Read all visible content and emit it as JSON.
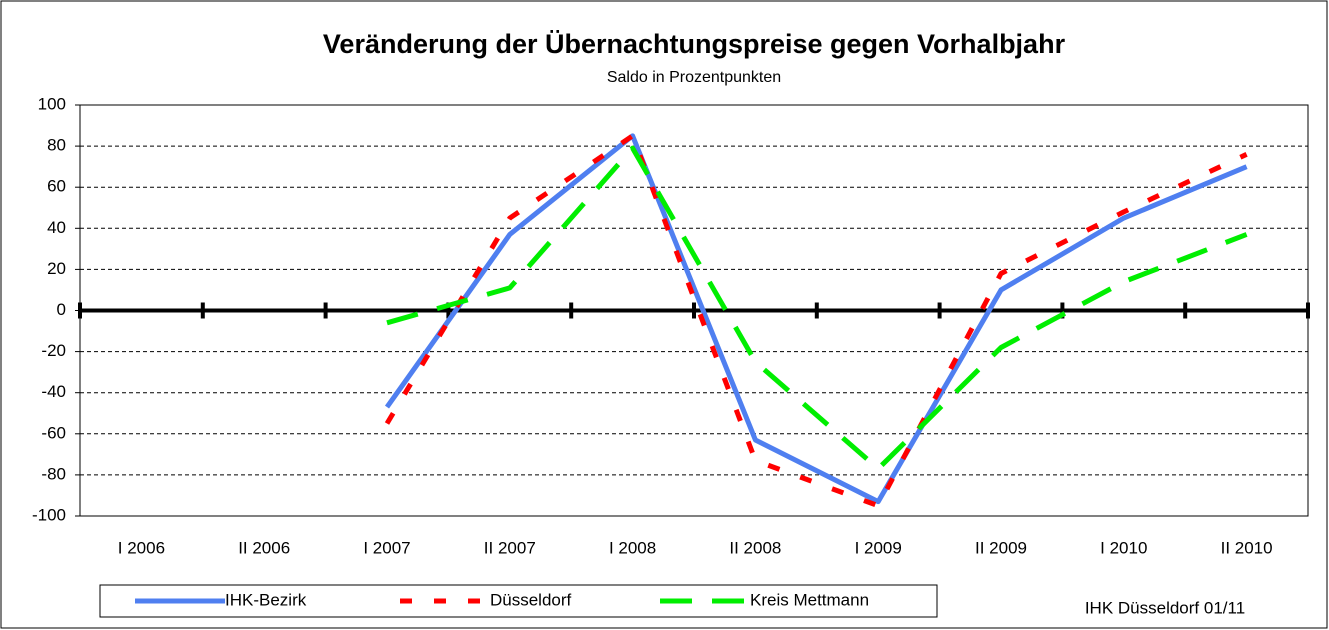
{
  "chart_data": {
    "type": "line",
    "title": "Veränderung der Übernachtungspreise gegen Vorhalbjahr",
    "subtitle": "Saldo in Prozentpunkten",
    "footer": "IHK Düsseldorf 01/11",
    "categories": [
      "I 2006",
      "II 2006",
      "I 2007",
      "II 2007",
      "I 2008",
      "II 2008",
      "I 2009",
      "II 2009",
      "I 2010",
      "II 2010"
    ],
    "series": [
      {
        "name": "IHK-Bezirk",
        "color": "#4f7ff0",
        "values": [
          null,
          null,
          -47,
          37,
          85,
          -63,
          -93,
          10,
          45,
          70
        ]
      },
      {
        "name": "Düsseldorf",
        "color": "#ff0000",
        "values": [
          null,
          null,
          -55,
          45,
          85,
          -73,
          -95,
          18,
          48,
          76
        ]
      },
      {
        "name": "Kreis Mettmann",
        "color": "#00ee00",
        "values": [
          null,
          null,
          -6,
          11,
          79,
          -25,
          -77,
          -18,
          14,
          37
        ]
      }
    ],
    "ylim": [
      -100,
      100
    ],
    "yticks": [
      -100,
      -80,
      -60,
      -40,
      -20,
      0,
      20,
      40,
      60,
      80,
      100
    ],
    "grid": true
  }
}
